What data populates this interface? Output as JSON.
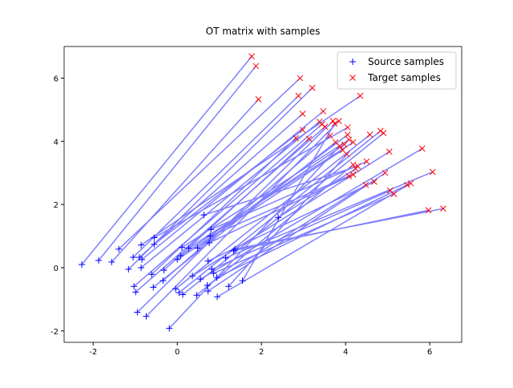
{
  "chart_data": {
    "type": "scatter",
    "title": "OT matrix with samples",
    "xlim": [
      -2.69,
      6.76
    ],
    "ylim": [
      -2.36,
      7.0
    ],
    "xticks": [
      -2,
      0,
      2,
      4,
      6
    ],
    "yticks": [
      -2,
      0,
      2,
      4,
      6
    ],
    "grid": false,
    "legend": "upper right",
    "link_color": "#7f7fff",
    "series": [
      {
        "name": "Source samples",
        "color": "#0000ff",
        "marker": "+",
        "x": [
          -2.27,
          -1.87,
          -1.56,
          -1.39,
          -1.16,
          -1.05,
          -0.86,
          -0.9,
          -0.84,
          -0.86,
          -1.03,
          -0.99,
          -0.95,
          -0.74,
          -0.55,
          -0.55,
          -0.61,
          -0.32,
          -0.34,
          -0.57,
          -0.19,
          0,
          0.08,
          0.11,
          0.27,
          0.48,
          -0.04,
          0.04,
          0.13,
          0.36,
          0.55,
          0.46,
          0.63,
          0.8,
          0.78,
          0.76,
          0.73,
          0.71,
          0.73,
          0.82,
          0.86,
          0.94,
          0.95,
          1.15,
          1.34,
          1.37,
          1.22,
          1.55,
          2.4
        ],
        "y": [
          0.1,
          0.23,
          0.18,
          0.59,
          -0.05,
          0.33,
          0.72,
          0.33,
          0.26,
          0,
          -0.59,
          -0.77,
          -1.41,
          -1.54,
          0.95,
          0.74,
          -0.21,
          -0.08,
          -0.41,
          -0.62,
          -1.92,
          0.26,
          0.38,
          0.64,
          0.62,
          0.62,
          -0.67,
          -0.79,
          -0.85,
          -0.26,
          -0.36,
          -0.87,
          1.67,
          1.21,
          1.0,
          0.79,
          0.21,
          -0.56,
          -0.74,
          -0.05,
          -0.18,
          -0.31,
          -0.92,
          0.31,
          0.54,
          0.59,
          -0.59,
          -0.41,
          1.59
        ]
      },
      {
        "name": "Target samples",
        "color": "#ff0000",
        "marker": "x",
        "x": [
          1.77,
          1.87,
          1.93,
          2.92,
          3.21,
          2.88,
          4.35,
          2.98,
          3.47,
          3.38,
          3.44,
          3.51,
          3.7,
          3.84,
          4.05,
          2.98,
          2.82,
          3.13,
          3.63,
          3.76,
          3.86,
          3.93,
          3.97,
          4.08,
          4.18,
          4.05,
          4.58,
          4.83,
          4.9,
          5.04,
          5.82,
          4.18,
          4.29,
          4.5,
          4.08,
          4.18,
          4.68,
          4.48,
          4.94,
          5.06,
          5.15,
          5.46,
          5.55,
          6.07,
          5.97,
          6.32,
          4.03,
          3.74,
          4.24
        ],
        "y": [
          6.69,
          6.38,
          5.33,
          6.0,
          5.69,
          5.44,
          5.44,
          4.87,
          4.95,
          4.62,
          4.54,
          4.46,
          4.64,
          4.64,
          4.44,
          4.36,
          4.1,
          4.08,
          4.18,
          3.97,
          3.85,
          3.72,
          3.9,
          4.05,
          3.97,
          4.21,
          4.21,
          4.33,
          4.26,
          3.67,
          3.77,
          3.26,
          3.21,
          3.36,
          2.9,
          2.95,
          2.72,
          2.62,
          3.0,
          2.44,
          2.33,
          2.62,
          2.67,
          3.03,
          1.82,
          1.87,
          3.59,
          4.56,
          3.13
        ]
      }
    ]
  }
}
